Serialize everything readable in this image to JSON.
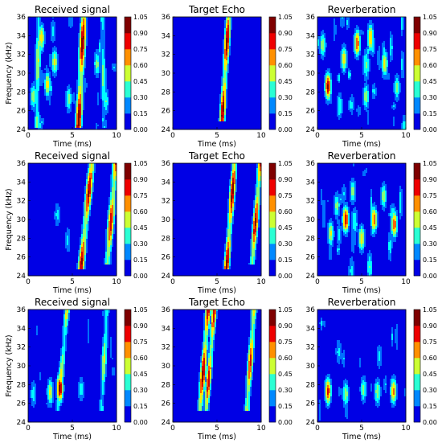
{
  "figure": {
    "grid_rows": 3,
    "grid_cols": 3,
    "colormap": "jet",
    "colormap_colors": [
      "#00007f",
      "#0000ff",
      "#007fff",
      "#00ffff",
      "#7fff7f",
      "#ffff00",
      "#ff7f00",
      "#ff0000",
      "#7f0000"
    ]
  },
  "chart_data": [
    {
      "type": "heatmap",
      "title": "Received signal",
      "xlabel": "Time (ms)",
      "ylabel": "Frequency (kHz)",
      "xlim": [
        0,
        10
      ],
      "ylim": [
        24,
        36
      ],
      "x_ticks": [
        "0",
        "5",
        "10"
      ],
      "y_ticks": [
        "24",
        "26",
        "28",
        "30",
        "32",
        "34",
        "36"
      ],
      "colorbar": {
        "min": 0,
        "max": 1.05,
        "ticks": [
          "0.00",
          "0.15",
          "0.30",
          "0.45",
          "0.60",
          "0.75",
          "0.90",
          "1.05"
        ]
      },
      "ridges": [
        {
          "t0": 5.7,
          "f0": 24.5,
          "t1": 6.3,
          "f1": 36,
          "peak": 1.0,
          "width": 0.35
        },
        {
          "t0": 1.0,
          "f0": 24.5,
          "t1": 1.2,
          "f1": 36,
          "peak": 0.55,
          "width": 0.3
        },
        {
          "t0": 8.6,
          "f0": 24.5,
          "t1": 8.4,
          "f1": 36,
          "peak": 0.45,
          "width": 0.3
        }
      ],
      "blobs": [
        {
          "t": 1.5,
          "f": 33.8,
          "a": 0.65
        },
        {
          "t": 3.0,
          "f": 31.2,
          "a": 0.55
        },
        {
          "t": 2.2,
          "f": 28.8,
          "a": 0.6
        },
        {
          "t": 4.6,
          "f": 27.2,
          "a": 0.45
        },
        {
          "t": 7.8,
          "f": 31.0,
          "a": 0.45
        },
        {
          "t": 0.6,
          "f": 27.5,
          "a": 0.5
        },
        {
          "t": 8.8,
          "f": 27.0,
          "a": 0.4
        }
      ],
      "noise": 0.35,
      "seed": 11
    },
    {
      "type": "heatmap",
      "title": "Target Echo",
      "xlabel": "Time (ms)",
      "ylabel": "",
      "xlim": [
        0,
        10
      ],
      "ylim": [
        24,
        36
      ],
      "x_ticks": [
        "0",
        "5",
        "10"
      ],
      "y_ticks": [
        "24",
        "26",
        "28",
        "30",
        "32",
        "34",
        "36"
      ],
      "colorbar": {
        "min": 0,
        "max": 1.05,
        "ticks": [
          "0.00",
          "0.15",
          "0.30",
          "0.45",
          "0.60",
          "0.75",
          "0.90",
          "1.05"
        ]
      },
      "ridges": [
        {
          "t0": 5.6,
          "f0": 25.2,
          "t1": 6.3,
          "f1": 35.8,
          "peak": 1.0,
          "width": 0.3
        }
      ],
      "blobs": [],
      "noise": 0.0,
      "seed": 12
    },
    {
      "type": "heatmap",
      "title": "Reverberation",
      "xlabel": "Time (ms)",
      "ylabel": "",
      "xlim": [
        0,
        10
      ],
      "ylim": [
        24,
        36
      ],
      "x_ticks": [
        "0",
        "5",
        "10"
      ],
      "y_ticks": [
        "24",
        "26",
        "28",
        "30",
        "32",
        "34",
        "36"
      ],
      "colorbar": {
        "min": 0,
        "max": 1.05,
        "ticks": [
          "0.00",
          "0.15",
          "0.30",
          "0.45",
          "0.60",
          "0.75",
          "0.90",
          "1.05"
        ]
      },
      "ridges": [],
      "blobs": [
        {
          "t": 1.2,
          "f": 28.6,
          "a": 0.95
        },
        {
          "t": 4.5,
          "f": 33.2,
          "a": 0.8
        },
        {
          "t": 6.0,
          "f": 33.8,
          "a": 0.7
        },
        {
          "t": 3.0,
          "f": 31.5,
          "a": 0.6
        },
        {
          "t": 7.6,
          "f": 31.0,
          "a": 0.6
        },
        {
          "t": 5.5,
          "f": 27.5,
          "a": 0.5
        },
        {
          "t": 9.0,
          "f": 28.5,
          "a": 0.45
        },
        {
          "t": 0.6,
          "f": 33.0,
          "a": 0.5
        },
        {
          "t": 2.5,
          "f": 26.5,
          "a": 0.4
        }
      ],
      "noise": 0.45,
      "seed": 13
    },
    {
      "type": "heatmap",
      "title": "Received signal",
      "xlabel": "Time (ms)",
      "ylabel": "Frequency (kHz)",
      "xlim": [
        0,
        10
      ],
      "ylim": [
        24,
        36
      ],
      "x_ticks": [
        "0",
        "5",
        "10"
      ],
      "y_ticks": [
        "24",
        "26",
        "28",
        "30",
        "32",
        "34",
        "36"
      ],
      "colorbar": {
        "min": 0,
        "max": 1.05,
        "ticks": [
          "0.00",
          "0.15",
          "0.30",
          "0.45",
          "0.60",
          "0.75",
          "0.90",
          "1.05"
        ]
      },
      "ridges": [
        {
          "t0": 6.0,
          "f0": 25.0,
          "t1": 7.2,
          "f1": 36,
          "peak": 0.95,
          "width": 0.35
        },
        {
          "t0": 9.0,
          "f0": 25.5,
          "t1": 9.9,
          "f1": 36,
          "peak": 0.9,
          "width": 0.35
        }
      ],
      "blobs": [
        {
          "t": 3.3,
          "f": 30.5,
          "a": 0.3
        },
        {
          "t": 4.5,
          "f": 27.8,
          "a": 0.3
        }
      ],
      "noise": 0.15,
      "seed": 21
    },
    {
      "type": "heatmap",
      "title": "Target Echo",
      "xlabel": "Time (ms)",
      "ylabel": "",
      "xlim": [
        0,
        10
      ],
      "ylim": [
        24,
        36
      ],
      "x_ticks": [
        "0",
        "5",
        "10"
      ],
      "y_ticks": [
        "24",
        "26",
        "28",
        "30",
        "32",
        "34",
        "36"
      ],
      "colorbar": {
        "min": 0,
        "max": 1.05,
        "ticks": [
          "0.00",
          "0.15",
          "0.30",
          "0.45",
          "0.60",
          "0.75",
          "0.90",
          "1.05"
        ]
      },
      "ridges": [
        {
          "t0": 6.1,
          "f0": 25.0,
          "t1": 7.0,
          "f1": 36,
          "peak": 1.0,
          "width": 0.3
        },
        {
          "t0": 9.0,
          "f0": 25.5,
          "t1": 9.9,
          "f1": 36,
          "peak": 0.95,
          "width": 0.3
        }
      ],
      "blobs": [],
      "noise": 0.0,
      "seed": 22
    },
    {
      "type": "heatmap",
      "title": "Reverberation",
      "xlabel": "Time (ms)",
      "ylabel": "",
      "xlim": [
        0,
        10
      ],
      "ylim": [
        24,
        36
      ],
      "x_ticks": [
        "0",
        "5",
        "10"
      ],
      "y_ticks": [
        "24",
        "26",
        "28",
        "30",
        "32",
        "34",
        "36"
      ],
      "colorbar": {
        "min": 0,
        "max": 1.05,
        "ticks": [
          "0.00",
          "0.15",
          "0.30",
          "0.45",
          "0.60",
          "0.75",
          "0.90",
          "1.05"
        ]
      },
      "ridges": [],
      "blobs": [
        {
          "t": 3.2,
          "f": 30.0,
          "a": 0.9
        },
        {
          "t": 6.4,
          "f": 30.0,
          "a": 0.75
        },
        {
          "t": 8.7,
          "f": 29.5,
          "a": 0.8
        },
        {
          "t": 5.0,
          "f": 28.0,
          "a": 0.6
        },
        {
          "t": 1.5,
          "f": 28.5,
          "a": 0.55
        },
        {
          "t": 7.5,
          "f": 32.5,
          "a": 0.5
        },
        {
          "t": 4.0,
          "f": 33.0,
          "a": 0.45
        },
        {
          "t": 2.2,
          "f": 31.5,
          "a": 0.45
        }
      ],
      "noise": 0.45,
      "seed": 23
    },
    {
      "type": "heatmap",
      "title": "Received signal",
      "xlabel": "Time (ms)",
      "ylabel": "Frequency (kHz)",
      "xlim": [
        0,
        10
      ],
      "ylim": [
        24,
        36
      ],
      "x_ticks": [
        "0",
        "5",
        "10"
      ],
      "y_ticks": [
        "24",
        "26",
        "28",
        "30",
        "32",
        "34",
        "36"
      ],
      "colorbar": {
        "min": 0,
        "max": 1.05,
        "ticks": [
          "0.00",
          "0.15",
          "0.30",
          "0.45",
          "0.60",
          "0.75",
          "0.90",
          "1.05"
        ]
      },
      "ridges": [
        {
          "t0": 3.4,
          "f0": 25.5,
          "t1": 4.4,
          "f1": 36,
          "peak": 0.6,
          "width": 0.3
        },
        {
          "t0": 8.3,
          "f0": 25.5,
          "t1": 8.9,
          "f1": 36,
          "peak": 0.55,
          "width": 0.3
        }
      ],
      "blobs": [
        {
          "t": 3.6,
          "f": 27.6,
          "a": 1.0
        },
        {
          "t": 2.5,
          "f": 27.2,
          "a": 0.55
        },
        {
          "t": 6.0,
          "f": 27.5,
          "a": 0.35
        },
        {
          "t": 0.6,
          "f": 27.0,
          "a": 0.35
        }
      ],
      "noise": 0.25,
      "seed": 31
    },
    {
      "type": "heatmap",
      "title": "Target Echo",
      "xlabel": "Time (ms)",
      "ylabel": "",
      "xlim": [
        0,
        10
      ],
      "ylim": [
        24,
        36
      ],
      "x_ticks": [
        "0",
        "5",
        "10"
      ],
      "y_ticks": [
        "24",
        "26",
        "28",
        "30",
        "32",
        "34",
        "36"
      ],
      "colorbar": {
        "min": 0,
        "max": 1.05,
        "ticks": [
          "0.00",
          "0.15",
          "0.30",
          "0.45",
          "0.60",
          "0.75",
          "0.90",
          "1.05"
        ]
      },
      "ridges": [
        {
          "t0": 3.1,
          "f0": 25.5,
          "t1": 4.0,
          "f1": 36,
          "peak": 1.0,
          "width": 0.3
        },
        {
          "t0": 3.8,
          "f0": 25.5,
          "t1": 4.7,
          "f1": 36,
          "peak": 0.9,
          "width": 0.28
        },
        {
          "t0": 8.4,
          "f0": 25.5,
          "t1": 9.2,
          "f1": 36,
          "peak": 0.85,
          "width": 0.3
        }
      ],
      "blobs": [],
      "noise": 0.0,
      "seed": 32
    },
    {
      "type": "heatmap",
      "title": "Reverberation",
      "xlabel": "Time (ms)",
      "ylabel": "",
      "xlim": [
        0,
        10
      ],
      "ylim": [
        24,
        36
      ],
      "x_ticks": [
        "0",
        "5",
        "10"
      ],
      "y_ticks": [
        "24",
        "26",
        "28",
        "30",
        "32",
        "34",
        "36"
      ],
      "colorbar": {
        "min": 0,
        "max": 1.05,
        "ticks": [
          "0.00",
          "0.15",
          "0.30",
          "0.45",
          "0.60",
          "0.75",
          "0.90",
          "1.05"
        ]
      },
      "ridges": [],
      "blobs": [
        {
          "t": 1.2,
          "f": 27.3,
          "a": 0.85
        },
        {
          "t": 8.6,
          "f": 27.3,
          "a": 0.7
        },
        {
          "t": 3.2,
          "f": 27.0,
          "a": 0.5
        },
        {
          "t": 5.2,
          "f": 27.5,
          "a": 0.45
        },
        {
          "t": 6.8,
          "f": 27.2,
          "a": 0.5
        },
        {
          "t": 2.4,
          "f": 31.5,
          "a": 0.3
        },
        {
          "t": 7.0,
          "f": 31.0,
          "a": 0.3
        }
      ],
      "noise": 0.3,
      "seed": 33
    }
  ]
}
